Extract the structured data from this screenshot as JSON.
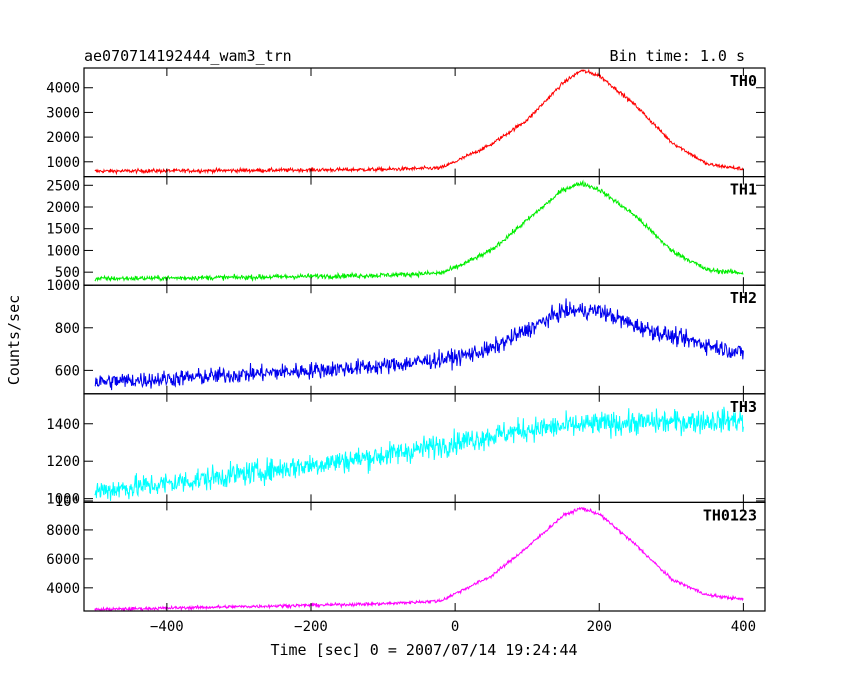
{
  "chart_data": {
    "type": "line",
    "title": "ae070714192444_wam3_trn",
    "bin_time_label": "Bin time: 1.0 s",
    "xlabel": "Time [sec] 0 = 2007/07/14 19:24:44",
    "ylabel": "Counts/sec",
    "xlim": [
      -515,
      430
    ],
    "x_ticks": [
      -400,
      -200,
      0,
      200,
      400
    ],
    "x_tick_labels": [
      "−400",
      "−200",
      "0",
      "200",
      "400"
    ],
    "x_range": [
      -500,
      400
    ],
    "grid": false,
    "panels": [
      {
        "name": "TH0",
        "color": "#ff0000",
        "ylim": [
          400,
          4800
        ],
        "y_ticks": [
          1000,
          2000,
          3000,
          4000
        ],
        "y_tick_labels": [
          "1000",
          "2000",
          "3000",
          "4000"
        ],
        "baseline": 600,
        "base_slope": 0.12,
        "peak": 4700,
        "peak_t": 175,
        "noise": 55,
        "x": [
          -500,
          -300,
          -100,
          -20,
          0,
          50,
          100,
          150,
          175,
          200,
          250,
          300,
          350,
          400
        ],
        "y": [
          620,
          650,
          690,
          750,
          1000,
          1700,
          2700,
          4200,
          4700,
          4500,
          3300,
          1800,
          900,
          700
        ]
      },
      {
        "name": "TH1",
        "color": "#00ee00",
        "ylim": [
          200,
          2700
        ],
        "y_ticks": [
          500,
          1000,
          1500,
          2000,
          2500
        ],
        "y_tick_labels": [
          "500",
          "1000",
          "1500",
          "2000",
          "2500"
        ],
        "baseline": 370,
        "base_slope": 0.1,
        "peak": 2550,
        "peak_t": 170,
        "noise": 40,
        "x": [
          -500,
          -300,
          -100,
          -20,
          0,
          50,
          100,
          150,
          175,
          200,
          250,
          300,
          350,
          400
        ],
        "y": [
          350,
          380,
          430,
          480,
          600,
          1000,
          1700,
          2400,
          2550,
          2400,
          1800,
          1000,
          550,
          480
        ]
      },
      {
        "name": "TH2",
        "color": "#0000ee",
        "ylim": [
          490,
          1000
        ],
        "y_ticks": [
          600,
          800,
          1000
        ],
        "y_tick_labels": [
          "600",
          "800",
          "1000"
        ],
        "baseline": 540,
        "base_slope": 0.2,
        "peak": 250,
        "peak_t": 170,
        "noise": 28,
        "x": [
          -500,
          -400,
          -300,
          -200,
          -100,
          0,
          50,
          100,
          150,
          200,
          250,
          300,
          350,
          400
        ],
        "y": [
          545,
          560,
          580,
          600,
          620,
          660,
          700,
          790,
          880,
          880,
          810,
          760,
          720,
          680
        ]
      },
      {
        "name": "TH3",
        "color": "#00ffff",
        "ylim": [
          980,
          1560
        ],
        "y_ticks": [
          1000,
          1200,
          1400
        ],
        "y_tick_labels": [
          "1000",
          "1200",
          "1400"
        ],
        "baseline": 1050,
        "base_slope": 0.42,
        "peak": 30,
        "peak_t": 180,
        "noise": 45,
        "x": [
          -500,
          -400,
          -300,
          -200,
          -100,
          0,
          100,
          200,
          300,
          400
        ],
        "y": [
          1040,
          1080,
          1130,
          1180,
          1230,
          1300,
          1370,
          1400,
          1410,
          1420
        ]
      },
      {
        "name": "TH0123",
        "color": "#ff00ff",
        "ylim": [
          2400,
          9900
        ],
        "y_ticks": [
          4000,
          6000,
          8000,
          10000
        ],
        "y_tick_labels": [
          "4000",
          "6000",
          "8000",
          "10⁴"
        ],
        "baseline": 2500,
        "base_slope": 0.8,
        "peak": 9500,
        "peak_t": 175,
        "noise": 80,
        "x": [
          -500,
          -300,
          -100,
          -20,
          0,
          50,
          100,
          150,
          175,
          200,
          250,
          300,
          350,
          400
        ],
        "y": [
          2500,
          2700,
          2900,
          3100,
          3600,
          4800,
          6800,
          9000,
          9500,
          9100,
          7000,
          4600,
          3500,
          3200
        ]
      }
    ]
  }
}
